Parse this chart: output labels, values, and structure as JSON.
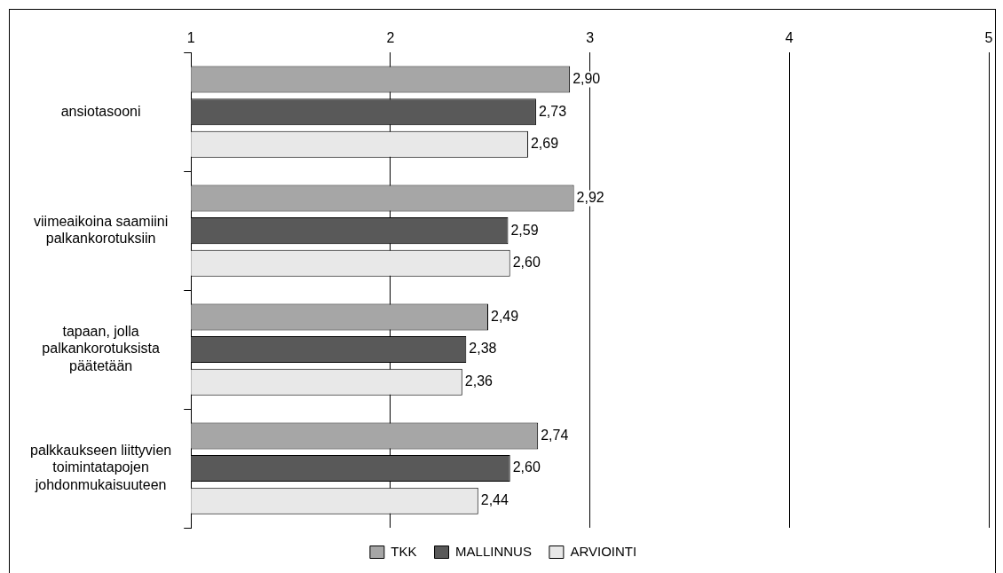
{
  "chart_data": {
    "type": "bar",
    "orientation": "horizontal",
    "categories": [
      "ansiotasooni",
      "viimeaikoina saamiini palkankorotuksiin",
      "tapaan, jolla palkankorotuksista päätetään",
      "palkkaukseen liittyvien toimintatapojen johdonmukaisuuteen"
    ],
    "series": [
      {
        "name": "TKK",
        "color": "#a6a6a6",
        "values": [
          2.9,
          2.92,
          2.49,
          2.74
        ],
        "value_labels": [
          "2,90",
          "2,92",
          "2,49",
          "2,74"
        ]
      },
      {
        "name": "MALLINNUS",
        "color": "#595959",
        "values": [
          2.73,
          2.59,
          2.38,
          2.6
        ],
        "value_labels": [
          "2,73",
          "2,59",
          "2,38",
          "2,60"
        ]
      },
      {
        "name": "ARVIOINTI",
        "color": "#e8e8e8",
        "values": [
          2.69,
          2.6,
          2.36,
          2.44
        ],
        "value_labels": [
          "2,69",
          "2,60",
          "2,36",
          "2,44"
        ]
      }
    ],
    "xlim": [
      1,
      5
    ],
    "xticks": [
      1,
      2,
      3,
      4,
      5
    ],
    "grid": "x",
    "legend": "bottom"
  }
}
